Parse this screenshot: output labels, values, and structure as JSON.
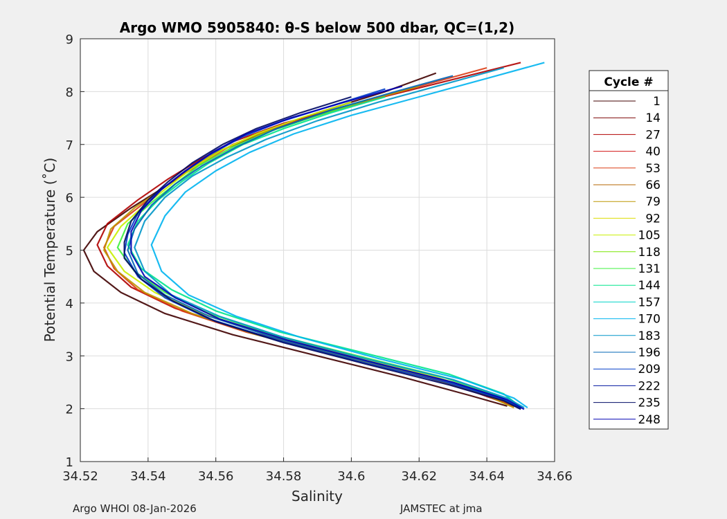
{
  "chart_data": {
    "type": "line",
    "title": "Argo WMO 5905840: θ-S below 500 dbar,  QC=(1,2)",
    "xlabel": "Salinity",
    "ylabel": "Potential Temperature (˚C)",
    "xlim": [
      34.52,
      34.66
    ],
    "ylim": [
      1,
      9
    ],
    "xticks": [
      "34.52",
      "34.54",
      "34.56",
      "34.58",
      "34.6",
      "34.62",
      "34.64",
      "34.66"
    ],
    "yticks": [
      "1",
      "2",
      "3",
      "4",
      "5",
      "6",
      "7",
      "8",
      "9"
    ],
    "grid": true,
    "legend": {
      "title": "Cycle #",
      "placement": "right-outside",
      "entries": [
        {
          "label": "1",
          "color": "#400000"
        },
        {
          "label": "14",
          "color": "#7a0000"
        },
        {
          "label": "27",
          "color": "#b00000"
        },
        {
          "label": "40",
          "color": "#d21414"
        },
        {
          "label": "53",
          "color": "#dc3c14"
        },
        {
          "label": "66",
          "color": "#b46400"
        },
        {
          "label": "79",
          "color": "#be9600"
        },
        {
          "label": "92",
          "color": "#dcdc00"
        },
        {
          "label": "105",
          "color": "#c8f000"
        },
        {
          "label": "118",
          "color": "#78e600"
        },
        {
          "label": "131",
          "color": "#3cf03c"
        },
        {
          "label": "144",
          "color": "#00e68c"
        },
        {
          "label": "157",
          "color": "#00d2c8"
        },
        {
          "label": "170",
          "color": "#00b4f0"
        },
        {
          "label": "183",
          "color": "#0096c8"
        },
        {
          "label": "196",
          "color": "#0064b4"
        },
        {
          "label": "209",
          "color": "#003cc8"
        },
        {
          "label": "222",
          "color": "#0014a0"
        },
        {
          "label": "235",
          "color": "#000a64"
        },
        {
          "label": "248",
          "color": "#0000b4"
        }
      ]
    },
    "series": [
      {
        "color": "#400000",
        "x": [
          34.625,
          34.61,
          34.59,
          34.575,
          34.562,
          34.553,
          34.545,
          34.535,
          34.525,
          34.521,
          34.524,
          34.532,
          34.545,
          34.565,
          34.59,
          34.615,
          34.635,
          34.646
        ],
        "y": [
          8.35,
          8.0,
          7.6,
          7.25,
          6.9,
          6.55,
          6.2,
          5.8,
          5.35,
          5.0,
          4.6,
          4.2,
          3.8,
          3.4,
          3.0,
          2.6,
          2.25,
          2.05
        ]
      },
      {
        "color": "#b00000",
        "x": [
          34.65,
          34.625,
          34.6,
          34.58,
          34.565,
          34.555,
          34.546,
          34.537,
          34.528,
          34.525,
          34.528,
          34.535,
          34.548,
          34.567,
          34.592,
          34.617,
          34.637,
          34.648
        ],
        "y": [
          8.55,
          8.15,
          7.75,
          7.4,
          7.05,
          6.7,
          6.35,
          5.95,
          5.5,
          5.1,
          4.7,
          4.3,
          3.9,
          3.5,
          3.1,
          2.7,
          2.3,
          2.05
        ]
      },
      {
        "color": "#dc3c14",
        "x": [
          34.64,
          34.62,
          34.598,
          34.579,
          34.565,
          34.556,
          34.547,
          34.539,
          34.53,
          34.527,
          34.53,
          34.537,
          34.55,
          34.569,
          34.594,
          34.62,
          34.639,
          34.649
        ],
        "y": [
          8.45,
          8.1,
          7.7,
          7.35,
          7.0,
          6.65,
          6.3,
          5.9,
          5.45,
          5.05,
          4.65,
          4.25,
          3.85,
          3.45,
          3.05,
          2.65,
          2.3,
          2.03
        ]
      },
      {
        "color": "#be9600",
        "x": [
          34.62,
          34.603,
          34.585,
          34.571,
          34.56,
          34.551,
          34.544,
          34.536,
          34.529,
          34.527,
          34.531,
          34.539,
          34.553,
          34.572,
          34.597,
          34.622,
          34.64,
          34.648
        ],
        "y": [
          8.1,
          7.8,
          7.45,
          7.15,
          6.85,
          6.5,
          6.15,
          5.8,
          5.4,
          5.0,
          4.6,
          4.2,
          3.8,
          3.4,
          3.0,
          2.6,
          2.25,
          2.02
        ]
      },
      {
        "color": "#c8f000",
        "x": [
          34.6,
          34.585,
          34.572,
          34.562,
          34.553,
          34.546,
          34.539,
          34.532,
          34.528,
          34.533,
          34.542,
          34.556,
          34.575,
          34.6,
          34.625,
          34.642,
          34.649
        ],
        "y": [
          7.8,
          7.5,
          7.2,
          6.9,
          6.55,
          6.2,
          5.85,
          5.45,
          5.05,
          4.6,
          4.2,
          3.8,
          3.4,
          3.0,
          2.6,
          2.25,
          2.03
        ]
      },
      {
        "color": "#3cf03c",
        "x": [
          34.605,
          34.59,
          34.576,
          34.565,
          34.555,
          34.548,
          34.541,
          34.534,
          34.531,
          34.536,
          34.545,
          34.558,
          34.577,
          34.602,
          34.627,
          34.643,
          34.65
        ],
        "y": [
          7.85,
          7.55,
          7.25,
          6.95,
          6.6,
          6.25,
          5.9,
          5.5,
          5.05,
          4.6,
          4.2,
          3.8,
          3.4,
          3.0,
          2.6,
          2.25,
          2.02
        ]
      },
      {
        "color": "#00e68c",
        "x": [
          34.61,
          34.594,
          34.58,
          34.568,
          34.558,
          34.55,
          34.543,
          34.537,
          34.534,
          34.538,
          34.547,
          34.56,
          34.579,
          34.604,
          34.629,
          34.645,
          34.65
        ],
        "y": [
          7.9,
          7.6,
          7.3,
          7.0,
          6.65,
          6.3,
          5.95,
          5.55,
          5.1,
          4.65,
          4.25,
          3.85,
          3.45,
          3.05,
          2.65,
          2.28,
          2.03
        ]
      },
      {
        "color": "#00b4f0",
        "x": [
          34.657,
          34.64,
          34.62,
          34.6,
          34.583,
          34.57,
          34.56,
          34.551,
          34.545,
          34.541,
          34.544,
          34.552,
          34.566,
          34.585,
          34.608,
          34.633,
          34.648,
          34.652
        ],
        "y": [
          8.55,
          8.25,
          7.9,
          7.55,
          7.2,
          6.85,
          6.5,
          6.1,
          5.65,
          5.1,
          4.6,
          4.15,
          3.75,
          3.35,
          2.95,
          2.55,
          2.2,
          2.02
        ]
      },
      {
        "color": "#0096c8",
        "x": [
          34.645,
          34.628,
          34.608,
          34.59,
          34.575,
          34.563,
          34.553,
          34.545,
          34.539,
          34.536,
          34.539,
          34.547,
          34.561,
          34.58,
          34.604,
          34.63,
          34.646,
          34.651
        ],
        "y": [
          8.45,
          8.15,
          7.8,
          7.45,
          7.1,
          6.75,
          6.4,
          6.0,
          5.55,
          5.05,
          4.6,
          4.15,
          3.75,
          3.35,
          2.95,
          2.55,
          2.2,
          2.02
        ]
      },
      {
        "color": "#0064b4",
        "x": [
          34.63,
          34.613,
          34.594,
          34.578,
          34.566,
          34.556,
          34.548,
          34.541,
          34.536,
          34.534,
          34.537,
          34.545,
          34.558,
          34.577,
          34.601,
          34.627,
          34.644,
          34.65
        ],
        "y": [
          8.3,
          8.0,
          7.65,
          7.3,
          6.95,
          6.6,
          6.25,
          5.85,
          5.4,
          5.0,
          4.55,
          4.15,
          3.75,
          3.35,
          2.95,
          2.55,
          2.2,
          2.0
        ]
      },
      {
        "color": "#003cc8",
        "x": [
          34.61,
          34.595,
          34.58,
          34.568,
          34.558,
          34.55,
          34.543,
          34.537,
          34.534,
          34.533,
          34.537,
          34.545,
          34.558,
          34.578,
          34.602,
          34.628,
          34.645,
          34.65
        ],
        "y": [
          8.05,
          7.75,
          7.45,
          7.15,
          6.8,
          6.45,
          6.1,
          5.7,
          5.3,
          4.95,
          4.5,
          4.1,
          3.7,
          3.3,
          2.9,
          2.5,
          2.18,
          2.0
        ]
      },
      {
        "color": "#000a64",
        "x": [
          34.6,
          34.585,
          34.572,
          34.562,
          34.553,
          34.546,
          34.54,
          34.535,
          34.533,
          34.533,
          34.538,
          34.547,
          34.56,
          34.58,
          34.604,
          34.629,
          34.645,
          34.65
        ],
        "y": [
          7.9,
          7.6,
          7.3,
          7.0,
          6.65,
          6.3,
          5.95,
          5.55,
          5.15,
          4.85,
          4.45,
          4.05,
          3.65,
          3.25,
          2.85,
          2.45,
          2.15,
          1.99
        ]
      },
      {
        "color": "#0000b4",
        "x": [
          34.615,
          34.598,
          34.582,
          34.569,
          34.559,
          34.551,
          34.544,
          34.538,
          34.535,
          34.535,
          34.539,
          34.548,
          34.561,
          34.581,
          34.605,
          34.63,
          34.646,
          34.651
        ],
        "y": [
          8.1,
          7.8,
          7.5,
          7.2,
          6.85,
          6.5,
          6.15,
          5.75,
          5.35,
          4.95,
          4.5,
          4.1,
          3.7,
          3.3,
          2.9,
          2.5,
          2.17,
          1.99
        ]
      }
    ]
  },
  "footer": {
    "left": "Argo WHOI 08-Jan-2026",
    "right": "JAMSTEC at jma"
  }
}
